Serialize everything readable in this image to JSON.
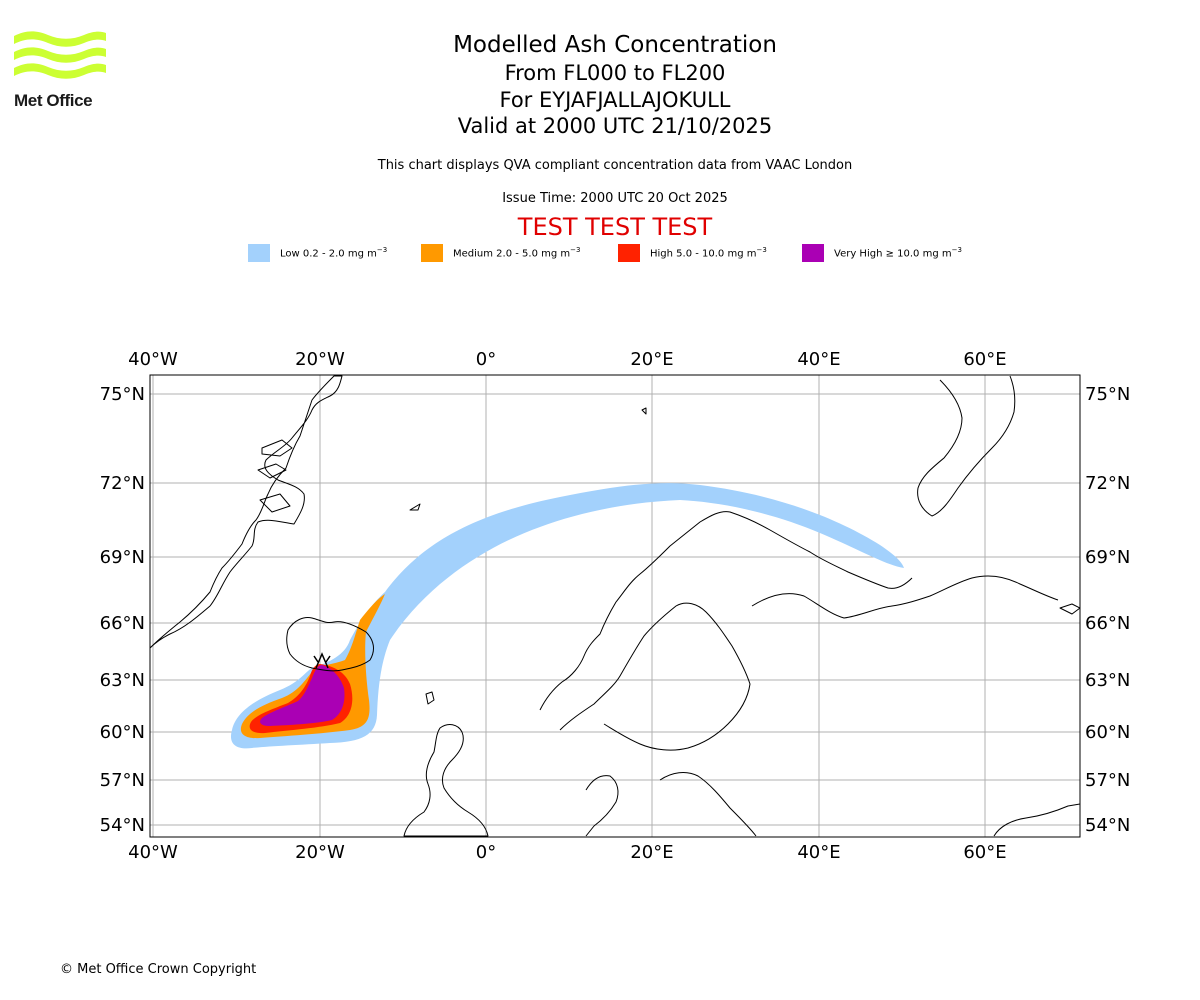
{
  "logo": {
    "text": "Met Office",
    "color": "#ccff33"
  },
  "title": {
    "line1": "Modelled Ash Concentration",
    "line2": "From FL000 to FL200",
    "line3": "For EYJAFJALLAJOKULL",
    "line4": "Valid at 2000 UTC 21/10/2025"
  },
  "description": "This chart displays QVA compliant concentration data from VAAC London",
  "issue_time": "Issue Time: 2000 UTC 20 Oct 2025",
  "test_banner": "TEST TEST TEST",
  "legend": [
    {
      "label": "Low 0.2 - 2.0 mg m",
      "unit_exp": "−3",
      "color": "#a3d1fc"
    },
    {
      "label": "Medium 2.0 - 5.0 mg m",
      "unit_exp": "−3",
      "color": "#ff9900"
    },
    {
      "label": "High 5.0 - 10.0 mg m",
      "unit_exp": "−3",
      "color": "#ff2200"
    },
    {
      "label": "Very High  ≥  10.0 mg m",
      "unit_exp": "−3",
      "color": "#aa00b4"
    }
  ],
  "map": {
    "lon_labels": [
      "40°W",
      "20°W",
      "0°",
      "20°E",
      "40°E",
      "60°E"
    ],
    "lat_labels": [
      "75°N",
      "72°N",
      "69°N",
      "66°N",
      "63°N",
      "60°N",
      "57°N",
      "54°N"
    ],
    "volcano_marker": "volcano-symbol"
  },
  "copyright": "© Met Office Crown Copyright"
}
